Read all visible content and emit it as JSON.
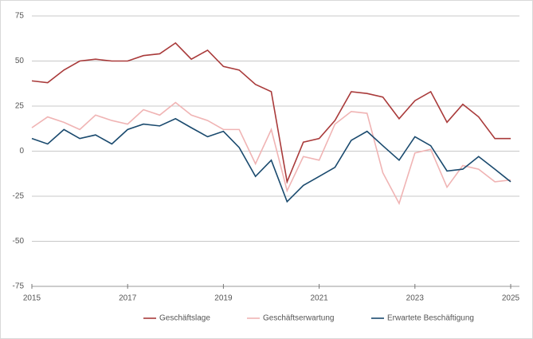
{
  "chart_data": {
    "type": "line",
    "x": [
      2015,
      2015.33,
      2015.67,
      2016,
      2016.33,
      2016.67,
      2017,
      2017.33,
      2017.67,
      2018,
      2018.33,
      2018.67,
      2019,
      2019.33,
      2019.67,
      2020,
      2020.33,
      2020.67,
      2021,
      2021.33,
      2021.67,
      2022,
      2022.33,
      2022.67,
      2023,
      2023.33,
      2023.67,
      2024,
      2024.33,
      2024.67,
      2025
    ],
    "series": [
      {
        "name": "Geschäftslage",
        "color": "#a93a3a",
        "values": [
          39,
          38,
          45,
          50,
          51,
          50,
          50,
          53,
          54,
          60,
          51,
          56,
          47,
          45,
          37,
          33,
          -17,
          5,
          7,
          17,
          33,
          32,
          30,
          18,
          28,
          33,
          16,
          26,
          19,
          7,
          7
        ]
      },
      {
        "name": "Geschäftserwartung",
        "color": "#f0b4b4",
        "values": [
          13,
          19,
          16,
          12,
          20,
          17,
          15,
          23,
          20,
          27,
          20,
          17,
          12,
          12,
          -7,
          12,
          -22,
          -3,
          -5,
          15,
          22,
          21,
          -12,
          -29,
          -1,
          1,
          -20,
          -8,
          -10,
          -17,
          -16
        ]
      },
      {
        "name": "Erwartete Beschäftigung",
        "color": "#1a4a6e",
        "values": [
          7,
          4,
          12,
          7,
          9,
          4,
          12,
          15,
          14,
          18,
          13,
          8,
          11,
          2,
          -14,
          -5,
          -28,
          -19,
          -14,
          -9,
          6,
          11,
          3,
          -5,
          8,
          3,
          -11,
          -10,
          -3,
          -10,
          -17
        ]
      }
    ],
    "xlim": [
      2015,
      2025
    ],
    "xticks": [
      2015,
      2017,
      2019,
      2021,
      2023,
      2025
    ],
    "ylim": [
      -75,
      75
    ],
    "yticks": [
      -75,
      -50,
      -25,
      0,
      25,
      50,
      75
    ],
    "grid": true
  }
}
